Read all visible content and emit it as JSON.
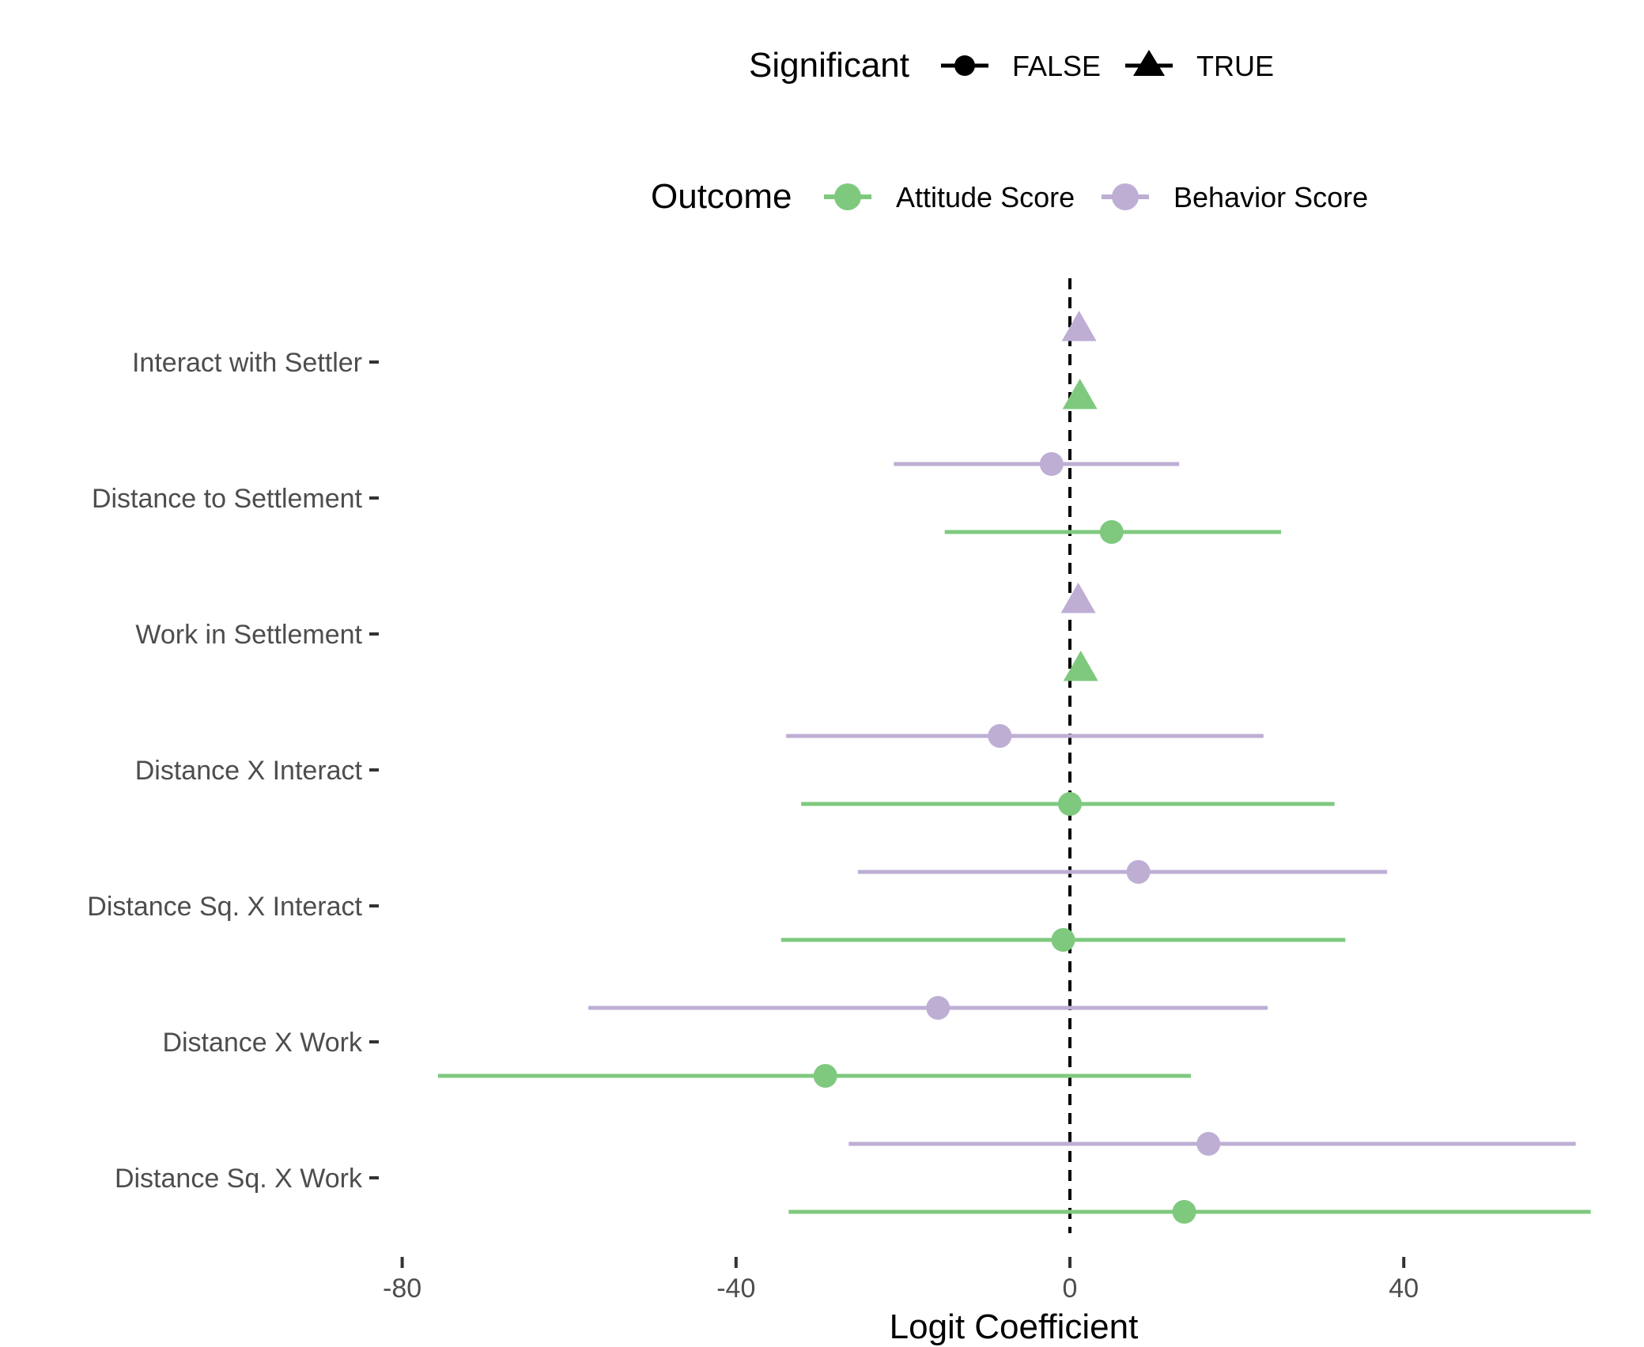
{
  "chart_data": {
    "type": "scatter",
    "subtype": "coefficient-plot-with-error-bars",
    "xlabel": "Logit Coefficient",
    "xlim": [
      -80,
      63
    ],
    "xticks": [
      -80,
      -40,
      0,
      40
    ],
    "xtick_labels": [
      "-80",
      "-40",
      "0",
      "40"
    ],
    "reference_line": {
      "x": 0,
      "style": "dashed"
    },
    "grid": false,
    "categories": [
      "Interact with Settler",
      "Distance to Settlement",
      "Work in Settlement",
      "Distance X Interact",
      "Distance Sq. X Interact",
      "Distance X Work",
      "Distance Sq. X Work"
    ],
    "series": [
      {
        "name": "Attitude Score",
        "color": "#7fc97f",
        "estimates": [
          1.2,
          5.0,
          1.3,
          0.0,
          -0.8,
          -29.3,
          13.7
        ],
        "lower": [
          1.2,
          -15.0,
          1.3,
          -32.2,
          -34.6,
          -75.7,
          -33.7
        ],
        "upper": [
          1.2,
          25.3,
          1.3,
          31.7,
          33.0,
          14.5,
          62.4
        ],
        "significant": [
          true,
          false,
          true,
          false,
          false,
          false,
          false
        ]
      },
      {
        "name": "Behavior Score",
        "color": "#beaed4",
        "estimates": [
          1.1,
          -2.2,
          1.0,
          -8.4,
          8.2,
          -15.8,
          16.6
        ],
        "lower": [
          1.1,
          -21.1,
          1.0,
          -34.0,
          -25.4,
          -57.7,
          -26.5
        ],
        "upper": [
          1.1,
          13.1,
          1.0,
          23.2,
          38.0,
          23.7,
          60.6
        ],
        "significant": [
          true,
          false,
          true,
          false,
          false,
          false,
          false
        ]
      }
    ],
    "legends": [
      {
        "title": "Significant",
        "entries": [
          {
            "label": "FALSE",
            "shape": "circle"
          },
          {
            "label": "TRUE",
            "shape": "triangle"
          }
        ]
      },
      {
        "title": "Outcome",
        "entries": [
          {
            "label": "Attitude Score",
            "color": "#7fc97f"
          },
          {
            "label": "Behavior Score",
            "color": "#beaed4"
          }
        ]
      }
    ],
    "legend_position": "top"
  }
}
